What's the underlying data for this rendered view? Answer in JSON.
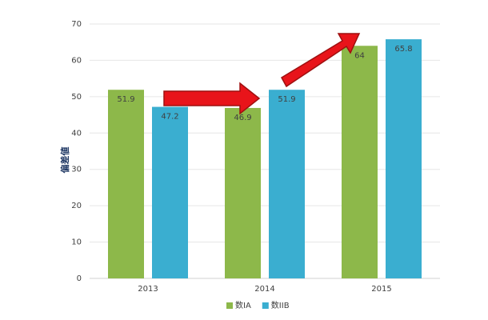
{
  "chart_data": {
    "type": "bar",
    "y_label": "偏差値",
    "categories": [
      "2013",
      "2014",
      "2015"
    ],
    "series": [
      {
        "name": "数IA",
        "color": "#8db84a",
        "values": [
          51.9,
          46.9,
          64
        ]
      },
      {
        "name": "数IIB",
        "color": "#3aaed0",
        "values": [
          47.2,
          51.9,
          65.8
        ]
      }
    ],
    "ylim": [
      0,
      70
    ],
    "yticks": [
      0,
      10,
      20,
      30,
      40,
      50,
      60,
      70
    ],
    "grid": true,
    "legend": "bottom"
  }
}
